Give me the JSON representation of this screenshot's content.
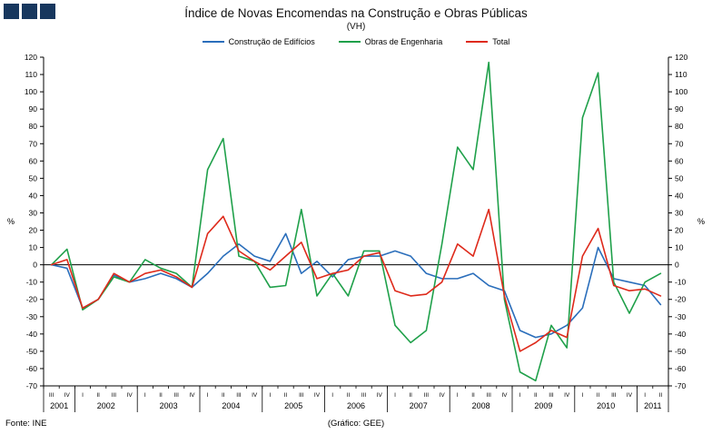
{
  "header": {
    "title": "Índice de Novas Encomendas na Construção e Obras Públicas",
    "subtitle": "(VH)"
  },
  "brand": {
    "logo_color": "#17375E"
  },
  "footer": {
    "source": "Fonte: INE",
    "credit": "(Gráfico: GEE)"
  },
  "chart_data": {
    "type": "line",
    "title": "Índice de Novas Encomendas na Construção e Obras Públicas (VH)",
    "ylabel_left": "%",
    "ylabel_right": "%",
    "ylim": [
      -70,
      120
    ],
    "ytick_step": 10,
    "grid": false,
    "legend_position": "top",
    "quarters": [
      "III",
      "IV",
      "I",
      "II",
      "III",
      "IV",
      "I",
      "II",
      "III",
      "IV",
      "I",
      "II",
      "III",
      "IV",
      "I",
      "II",
      "III",
      "IV",
      "I",
      "II",
      "III",
      "IV",
      "I",
      "II",
      "III",
      "IV",
      "I",
      "II",
      "III",
      "IV",
      "I",
      "II",
      "III",
      "IV",
      "I",
      "II",
      "III",
      "IV",
      "I",
      "II"
    ],
    "year_groups": [
      {
        "year": "2001",
        "count": 2
      },
      {
        "year": "2002",
        "count": 4
      },
      {
        "year": "2003",
        "count": 4
      },
      {
        "year": "2004",
        "count": 4
      },
      {
        "year": "2005",
        "count": 4
      },
      {
        "year": "2006",
        "count": 4
      },
      {
        "year": "2007",
        "count": 4
      },
      {
        "year": "2008",
        "count": 4
      },
      {
        "year": "2009",
        "count": 4
      },
      {
        "year": "2010",
        "count": 4
      },
      {
        "year": "2011",
        "count": 2
      }
    ],
    "series": [
      {
        "name": "Construção de Edifícios",
        "color": "#2A6EBB",
        "values": [
          0,
          -2,
          -25,
          -20,
          -6,
          -10,
          -8,
          -5,
          -8,
          -13,
          -5,
          5,
          12,
          5,
          2,
          18,
          -5,
          2,
          -7,
          3,
          5,
          5,
          8,
          5,
          -5,
          -8,
          -8,
          -5,
          -12,
          -15,
          -38,
          -42,
          -40,
          -35,
          -25,
          10,
          -8,
          -10,
          -12,
          -23
        ]
      },
      {
        "name": "Obras de Engenharia",
        "color": "#1FA04A",
        "values": [
          0,
          9,
          -26,
          -20,
          -7,
          -10,
          3,
          -2,
          -5,
          -13,
          55,
          73,
          5,
          2,
          -13,
          -12,
          32,
          -18,
          -5,
          -18,
          8,
          8,
          -35,
          -45,
          -38,
          12,
          68,
          55,
          117,
          -20,
          -62,
          -67,
          -35,
          -48,
          85,
          111,
          -10,
          -28,
          -10,
          -5
        ]
      },
      {
        "name": "Total",
        "color": "#DE2A1B",
        "values": [
          0,
          3,
          -25,
          -20,
          -5,
          -10,
          -5,
          -3,
          -7,
          -13,
          18,
          28,
          8,
          2,
          -3,
          5,
          13,
          -8,
          -5,
          -3,
          5,
          7,
          -15,
          -18,
          -17,
          -10,
          12,
          5,
          32,
          -18,
          -50,
          -45,
          -38,
          -42,
          5,
          21,
          -12,
          -15,
          -14,
          -18
        ]
      }
    ]
  }
}
